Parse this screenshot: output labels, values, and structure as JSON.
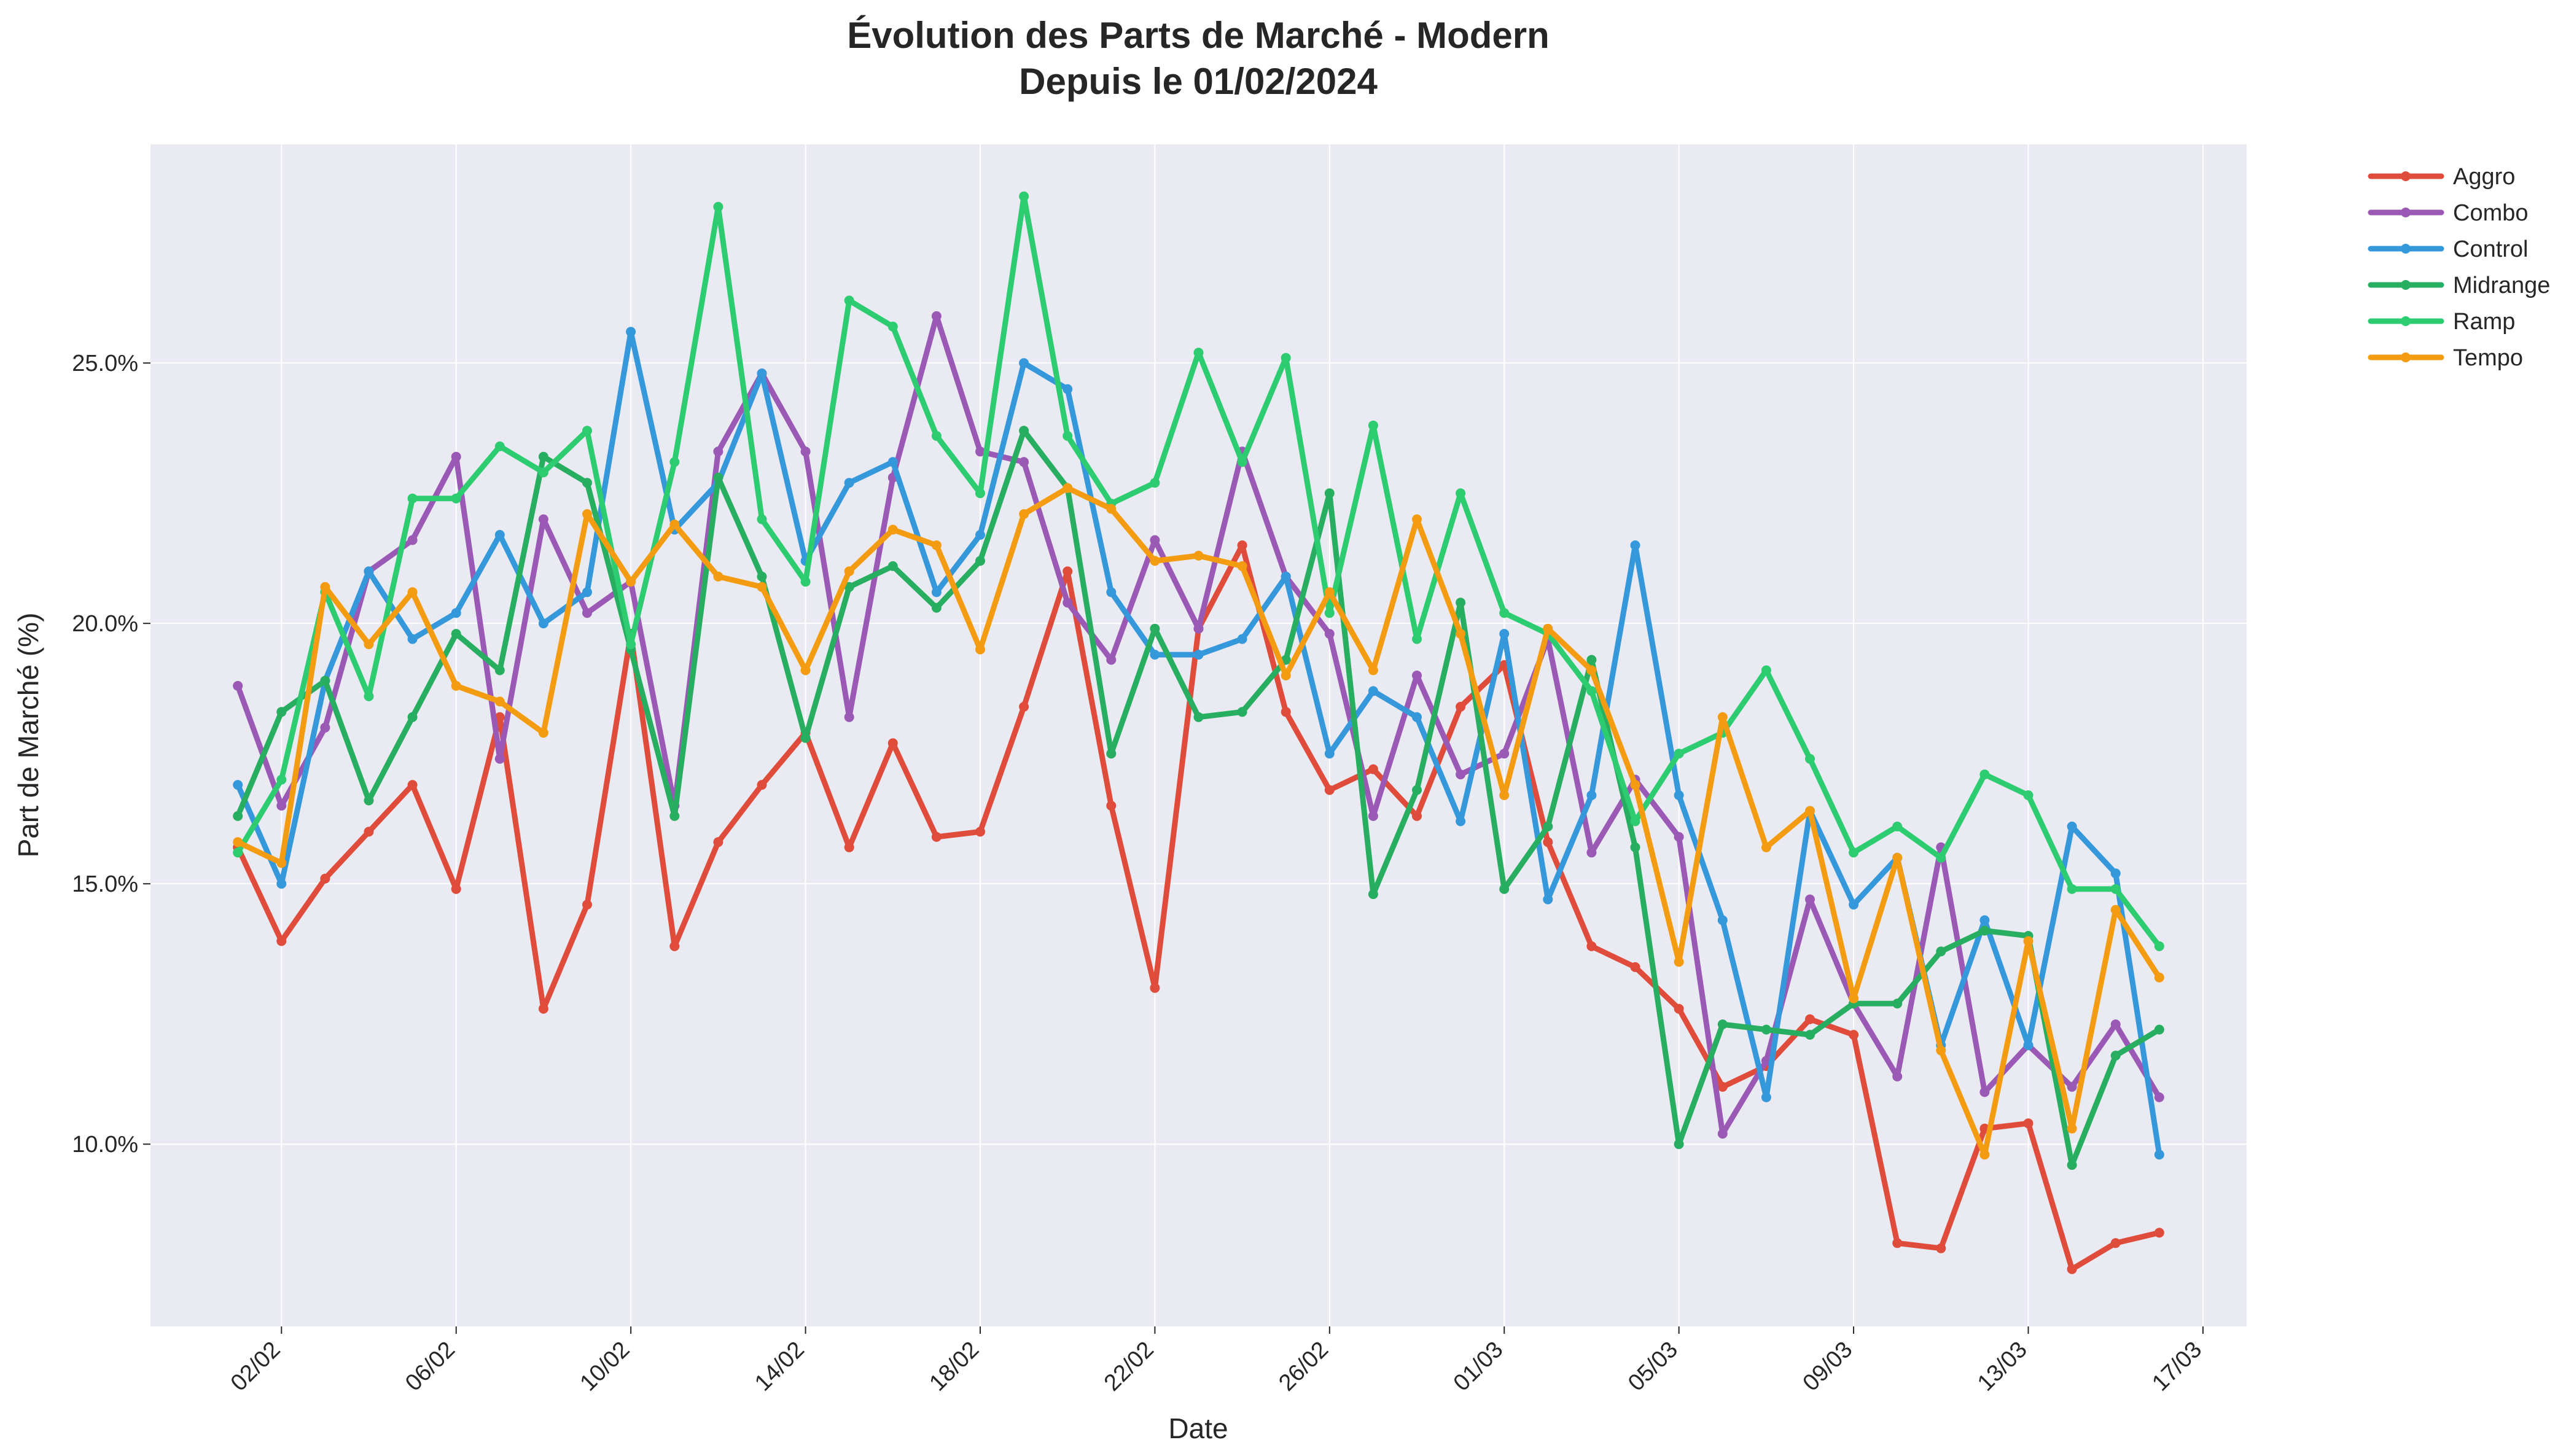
{
  "chart_data": {
    "type": "line",
    "title": "Évolution des Parts de Marché - Modern",
    "subtitle": "Depuis le 01/02/2024",
    "xlabel": "Date",
    "ylabel": "Part de Marché (%)",
    "x": [
      "2024-02-01",
      "2024-02-02",
      "2024-02-03",
      "2024-02-04",
      "2024-02-05",
      "2024-02-06",
      "2024-02-07",
      "2024-02-08",
      "2024-02-09",
      "2024-02-10",
      "2024-02-11",
      "2024-02-12",
      "2024-02-13",
      "2024-02-14",
      "2024-02-15",
      "2024-02-16",
      "2024-02-17",
      "2024-02-18",
      "2024-02-19",
      "2024-02-20",
      "2024-02-21",
      "2024-02-22",
      "2024-02-23",
      "2024-02-24",
      "2024-02-25",
      "2024-02-26",
      "2024-02-27",
      "2024-02-28",
      "2024-02-29",
      "2024-03-01",
      "2024-03-02",
      "2024-03-03",
      "2024-03-04",
      "2024-03-05",
      "2024-03-06",
      "2024-03-07",
      "2024-03-08",
      "2024-03-09",
      "2024-03-10",
      "2024-03-11",
      "2024-03-12",
      "2024-03-13",
      "2024-03-14",
      "2024-03-15",
      "2024-03-16"
    ],
    "x_ticks": [
      "2024-02-02",
      "2024-02-06",
      "2024-02-10",
      "2024-02-14",
      "2024-02-18",
      "2024-02-22",
      "2024-02-26",
      "2024-03-01",
      "2024-03-05",
      "2024-03-09",
      "2024-03-13",
      "2024-03-17"
    ],
    "x_tick_labels": [
      "02/02",
      "06/02",
      "10/02",
      "14/02",
      "18/02",
      "22/02",
      "26/02",
      "01/03",
      "05/03",
      "09/03",
      "13/03",
      "17/03"
    ],
    "x_range": [
      "2024-01-30",
      "2024-03-18"
    ],
    "ylim": [
      6.5,
      29.2
    ],
    "y_ticks": [
      10,
      15,
      20,
      25
    ],
    "y_tick_labels": [
      "10.0%",
      "15.0%",
      "20.0%",
      "25.0%"
    ],
    "grid": true,
    "legend": "outside-top-right",
    "series": [
      {
        "name": "Aggro",
        "color": "#e04c3c",
        "values": [
          15.7,
          13.9,
          15.1,
          16.0,
          16.9,
          14.9,
          18.2,
          12.6,
          14.6,
          19.8,
          13.8,
          15.8,
          16.9,
          17.9,
          15.7,
          17.7,
          15.9,
          16.0,
          18.4,
          21.0,
          16.5,
          13.0,
          19.9,
          21.5,
          18.3,
          16.8,
          17.2,
          16.3,
          18.4,
          19.2,
          15.8,
          13.8,
          13.4,
          12.6,
          11.1,
          11.5,
          12.4,
          12.1,
          8.1,
          8.0,
          10.3,
          10.4,
          7.6,
          8.1,
          8.3
        ]
      },
      {
        "name": "Combo",
        "color": "#9b59b6",
        "values": [
          18.8,
          16.5,
          18.0,
          21.0,
          21.6,
          23.2,
          17.4,
          22.0,
          20.2,
          20.8,
          16.5,
          23.3,
          24.8,
          23.3,
          18.2,
          22.8,
          25.9,
          23.3,
          23.1,
          20.4,
          19.3,
          21.6,
          19.9,
          23.3,
          20.9,
          19.8,
          16.3,
          19.0,
          17.1,
          17.5,
          19.7,
          15.6,
          17.0,
          15.9,
          10.2,
          11.6,
          14.7,
          12.7,
          11.3,
          15.7,
          11.0,
          11.9,
          11.1,
          12.3,
          10.9
        ]
      },
      {
        "name": "Control",
        "color": "#3498db",
        "values": [
          16.9,
          15.0,
          18.9,
          21.0,
          19.7,
          20.2,
          21.7,
          20.0,
          20.6,
          25.6,
          21.8,
          22.7,
          24.8,
          21.2,
          22.7,
          23.1,
          20.6,
          21.7,
          25.0,
          24.5,
          20.6,
          19.4,
          19.4,
          19.7,
          20.9,
          17.5,
          18.7,
          18.2,
          16.2,
          19.8,
          14.7,
          16.7,
          21.5,
          16.7,
          14.3,
          10.9,
          16.4,
          14.6,
          15.5,
          11.9,
          14.3,
          11.9,
          16.1,
          15.2,
          9.8
        ]
      },
      {
        "name": "Midrange",
        "color": "#27ae60",
        "values": [
          16.3,
          18.3,
          18.9,
          16.6,
          18.2,
          19.8,
          19.1,
          23.2,
          22.7,
          19.5,
          16.3,
          22.8,
          20.9,
          17.8,
          20.7,
          21.1,
          20.3,
          21.2,
          23.7,
          22.6,
          17.5,
          19.9,
          18.2,
          18.3,
          19.3,
          22.5,
          14.8,
          16.8,
          20.4,
          14.9,
          16.1,
          19.3,
          15.7,
          10.0,
          12.3,
          12.2,
          12.1,
          12.7,
          12.7,
          13.7,
          14.1,
          14.0,
          9.6,
          11.7,
          12.2
        ]
      },
      {
        "name": "Ramp",
        "color": "#2ecc71",
        "values": [
          15.6,
          17.0,
          20.6,
          18.6,
          22.4,
          22.4,
          23.4,
          22.9,
          23.7,
          19.6,
          23.1,
          28.0,
          22.0,
          20.8,
          26.2,
          25.7,
          23.6,
          22.5,
          28.2,
          23.6,
          22.3,
          22.7,
          25.2,
          23.1,
          25.1,
          20.2,
          23.8,
          19.7,
          22.5,
          20.2,
          19.8,
          18.7,
          16.2,
          17.5,
          17.9,
          19.1,
          17.4,
          15.6,
          16.1,
          15.5,
          17.1,
          16.7,
          14.9,
          14.9,
          13.8
        ]
      },
      {
        "name": "Tempo",
        "color": "#f39c12",
        "values": [
          15.8,
          15.4,
          20.7,
          19.6,
          20.6,
          18.8,
          18.5,
          17.9,
          22.1,
          20.8,
          21.9,
          20.9,
          20.7,
          19.1,
          21.0,
          21.8,
          21.5,
          19.5,
          22.1,
          22.6,
          22.2,
          21.2,
          21.3,
          21.1,
          19.0,
          20.6,
          19.1,
          22.0,
          19.8,
          16.7,
          19.9,
          19.1,
          16.9,
          13.5,
          18.2,
          15.7,
          16.4,
          12.8,
          15.5,
          11.8,
          9.8,
          13.9,
          10.3,
          14.5,
          13.2
        ]
      }
    ]
  }
}
